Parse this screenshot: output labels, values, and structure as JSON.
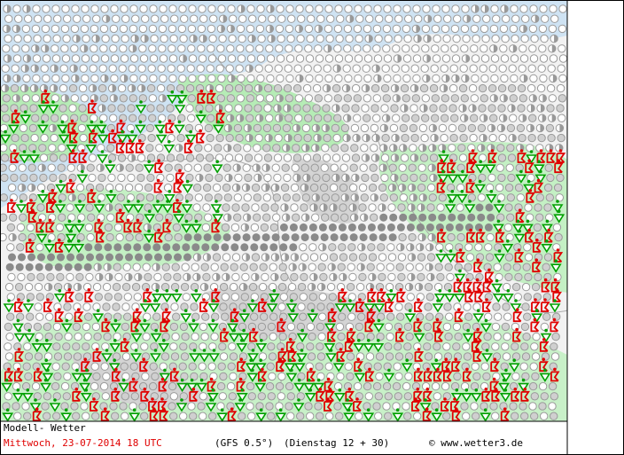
{
  "footer": {
    "model": "Modell- Wetter",
    "date": "Mittwoch, 23-07-2014  18 UTC",
    "source": "(GFS 0.5°)",
    "run": "(Dienstag 12 + 30)",
    "copyright": "© www.wetter3.de"
  }
}
